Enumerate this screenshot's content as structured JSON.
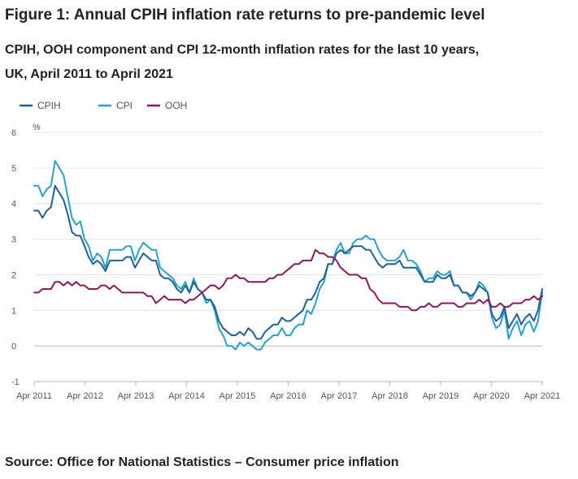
{
  "figure": {
    "title": "Figure 1: Annual CPIH inflation rate returns to pre-pandemic level",
    "subtitle": "CPIH, OOH component and CPI 12-month inflation rates for the last 10 years, UK, April 2011 to April 2021",
    "source": "Source: Office for National Statistics – Consumer price inflation"
  },
  "chart_data": {
    "type": "line",
    "ylabel": "%",
    "ylim": [
      -1,
      6
    ],
    "yticks": [
      -1,
      0,
      1,
      2,
      3,
      4,
      5,
      6
    ],
    "xticks": [
      "Apr 2011",
      "Apr 2012",
      "Apr 2013",
      "Apr 2014",
      "Apr 2015",
      "Apr 2016",
      "Apr 2017",
      "Apr 2018",
      "Apr 2019",
      "Apr 2020",
      "Apr 2021"
    ],
    "x_start": "Apr 2011",
    "x_end": "Apr 2021",
    "grid": "horizontal",
    "legend_position": "top-left",
    "series": [
      {
        "name": "CPIH",
        "color": "#206095",
        "values": [
          3.8,
          3.8,
          3.6,
          3.8,
          3.9,
          4.5,
          4.3,
          4.1,
          3.7,
          3.2,
          3.1,
          3.1,
          2.8,
          2.5,
          2.3,
          2.4,
          2.3,
          2.1,
          2.4,
          2.4,
          2.4,
          2.4,
          2.5,
          2.5,
          2.2,
          2.4,
          2.6,
          2.5,
          2.4,
          2.4,
          2.0,
          1.9,
          1.9,
          1.8,
          1.6,
          1.5,
          1.7,
          1.5,
          1.8,
          1.6,
          1.5,
          1.3,
          1.3,
          1.1,
          0.7,
          0.5,
          0.4,
          0.3,
          0.3,
          0.4,
          0.3,
          0.5,
          0.4,
          0.2,
          0.2,
          0.4,
          0.5,
          0.6,
          0.6,
          0.8,
          0.7,
          0.7,
          0.8,
          0.9,
          1.0,
          1.3,
          1.3,
          1.5,
          1.8,
          1.9,
          2.3,
          2.3,
          2.6,
          2.7,
          2.6,
          2.7,
          2.8,
          2.8,
          2.8,
          2.7,
          2.7,
          2.5,
          2.3,
          2.2,
          2.3,
          2.3,
          2.3,
          2.4,
          2.2,
          2.2,
          2.2,
          2.2,
          2.0,
          1.8,
          1.8,
          1.8,
          2.0,
          1.9,
          1.9,
          2.0,
          1.7,
          1.7,
          1.5,
          1.5,
          1.4,
          1.5,
          1.7,
          1.6,
          1.5,
          0.9,
          0.7,
          0.8,
          1.1,
          0.5,
          0.7,
          0.9,
          0.6,
          0.8,
          0.9,
          0.7,
          1.0,
          1.6
        ]
      },
      {
        "name": "CPI",
        "color": "#27a0cc",
        "values": [
          4.5,
          4.5,
          4.2,
          4.4,
          4.5,
          5.2,
          5.0,
          4.8,
          4.2,
          3.6,
          3.4,
          3.5,
          3.0,
          2.8,
          2.4,
          2.6,
          2.5,
          2.2,
          2.7,
          2.7,
          2.7,
          2.7,
          2.8,
          2.8,
          2.4,
          2.7,
          2.9,
          2.8,
          2.7,
          2.7,
          2.2,
          2.1,
          2.0,
          1.9,
          1.7,
          1.6,
          1.8,
          1.5,
          1.9,
          1.6,
          1.5,
          1.2,
          1.3,
          1.0,
          0.5,
          0.3,
          0.0,
          0.0,
          -0.1,
          0.1,
          0.0,
          0.1,
          0.0,
          -0.1,
          -0.1,
          0.1,
          0.2,
          0.3,
          0.3,
          0.5,
          0.3,
          0.3,
          0.5,
          0.6,
          0.6,
          1.0,
          0.9,
          1.2,
          1.6,
          1.8,
          2.3,
          2.3,
          2.7,
          2.9,
          2.6,
          2.6,
          2.9,
          3.0,
          3.0,
          3.1,
          3.0,
          3.0,
          2.7,
          2.5,
          2.4,
          2.4,
          2.4,
          2.5,
          2.7,
          2.4,
          2.4,
          2.3,
          2.1,
          1.8,
          1.9,
          1.9,
          2.1,
          2.0,
          2.0,
          2.1,
          1.7,
          1.7,
          1.5,
          1.5,
          1.3,
          1.5,
          1.8,
          1.7,
          1.5,
          0.8,
          0.5,
          0.6,
          1.0,
          0.2,
          0.5,
          0.7,
          0.3,
          0.6,
          0.7,
          0.4,
          0.7,
          1.5
        ]
      },
      {
        "name": "OOH",
        "color": "#871a5b",
        "values": [
          1.5,
          1.5,
          1.6,
          1.6,
          1.6,
          1.8,
          1.8,
          1.7,
          1.8,
          1.7,
          1.8,
          1.7,
          1.7,
          1.6,
          1.6,
          1.6,
          1.7,
          1.7,
          1.6,
          1.7,
          1.6,
          1.5,
          1.5,
          1.5,
          1.5,
          1.5,
          1.5,
          1.4,
          1.4,
          1.2,
          1.3,
          1.4,
          1.3,
          1.3,
          1.3,
          1.3,
          1.2,
          1.3,
          1.3,
          1.4,
          1.5,
          1.6,
          1.7,
          1.7,
          1.6,
          1.7,
          1.9,
          1.9,
          2.0,
          1.9,
          1.9,
          1.8,
          1.8,
          1.8,
          1.8,
          1.8,
          1.9,
          1.9,
          2.0,
          2.0,
          2.1,
          2.2,
          2.3,
          2.3,
          2.4,
          2.4,
          2.4,
          2.7,
          2.6,
          2.6,
          2.5,
          2.5,
          2.4,
          2.2,
          2.1,
          2.0,
          2.0,
          2.0,
          1.9,
          1.9,
          1.6,
          1.5,
          1.3,
          1.2,
          1.2,
          1.2,
          1.2,
          1.1,
          1.1,
          1.1,
          1.0,
          1.0,
          1.1,
          1.1,
          1.2,
          1.1,
          1.1,
          1.2,
          1.2,
          1.2,
          1.2,
          1.1,
          1.1,
          1.2,
          1.2,
          1.2,
          1.3,
          1.2,
          1.3,
          1.1,
          1.1,
          1.2,
          1.1,
          1.1,
          1.2,
          1.2,
          1.2,
          1.3,
          1.3,
          1.4,
          1.3,
          1.4
        ]
      }
    ]
  }
}
